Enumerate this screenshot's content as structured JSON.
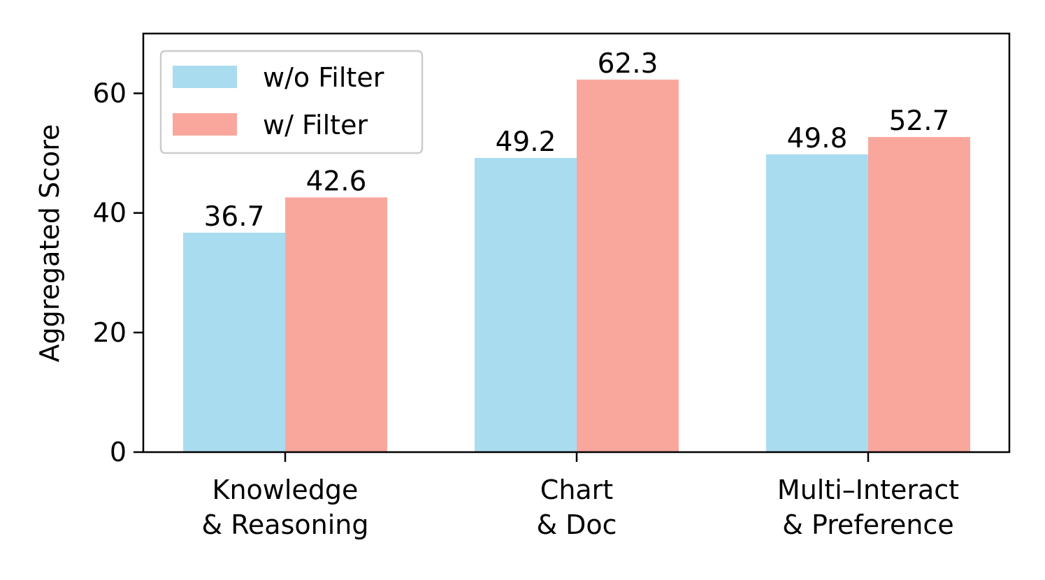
{
  "chart_data": {
    "type": "bar",
    "categories": [
      [
        "Knowledge",
        "& Reasoning"
      ],
      [
        "Chart",
        "& Doc"
      ],
      [
        "Multi–Interact",
        "& Preference"
      ]
    ],
    "series": [
      {
        "name": "w/o Filter",
        "color": "#aadcf0",
        "values": [
          36.7,
          49.2,
          49.8
        ],
        "labels": [
          "36.7",
          "49.2",
          "49.8"
        ]
      },
      {
        "name": "w/ Filter",
        "color": "#f9a79d",
        "values": [
          42.6,
          62.3,
          52.7
        ],
        "labels": [
          "42.6",
          "62.3",
          "52.7"
        ]
      }
    ],
    "ylabel": "Aggregated Score",
    "xlabel": "",
    "ylim": [
      0,
      70
    ],
    "yticks": [
      0,
      20,
      40,
      60
    ],
    "ytick_labels": [
      "0",
      "20",
      "40",
      "60"
    ],
    "grid": false,
    "legend_position": "top-left"
  }
}
